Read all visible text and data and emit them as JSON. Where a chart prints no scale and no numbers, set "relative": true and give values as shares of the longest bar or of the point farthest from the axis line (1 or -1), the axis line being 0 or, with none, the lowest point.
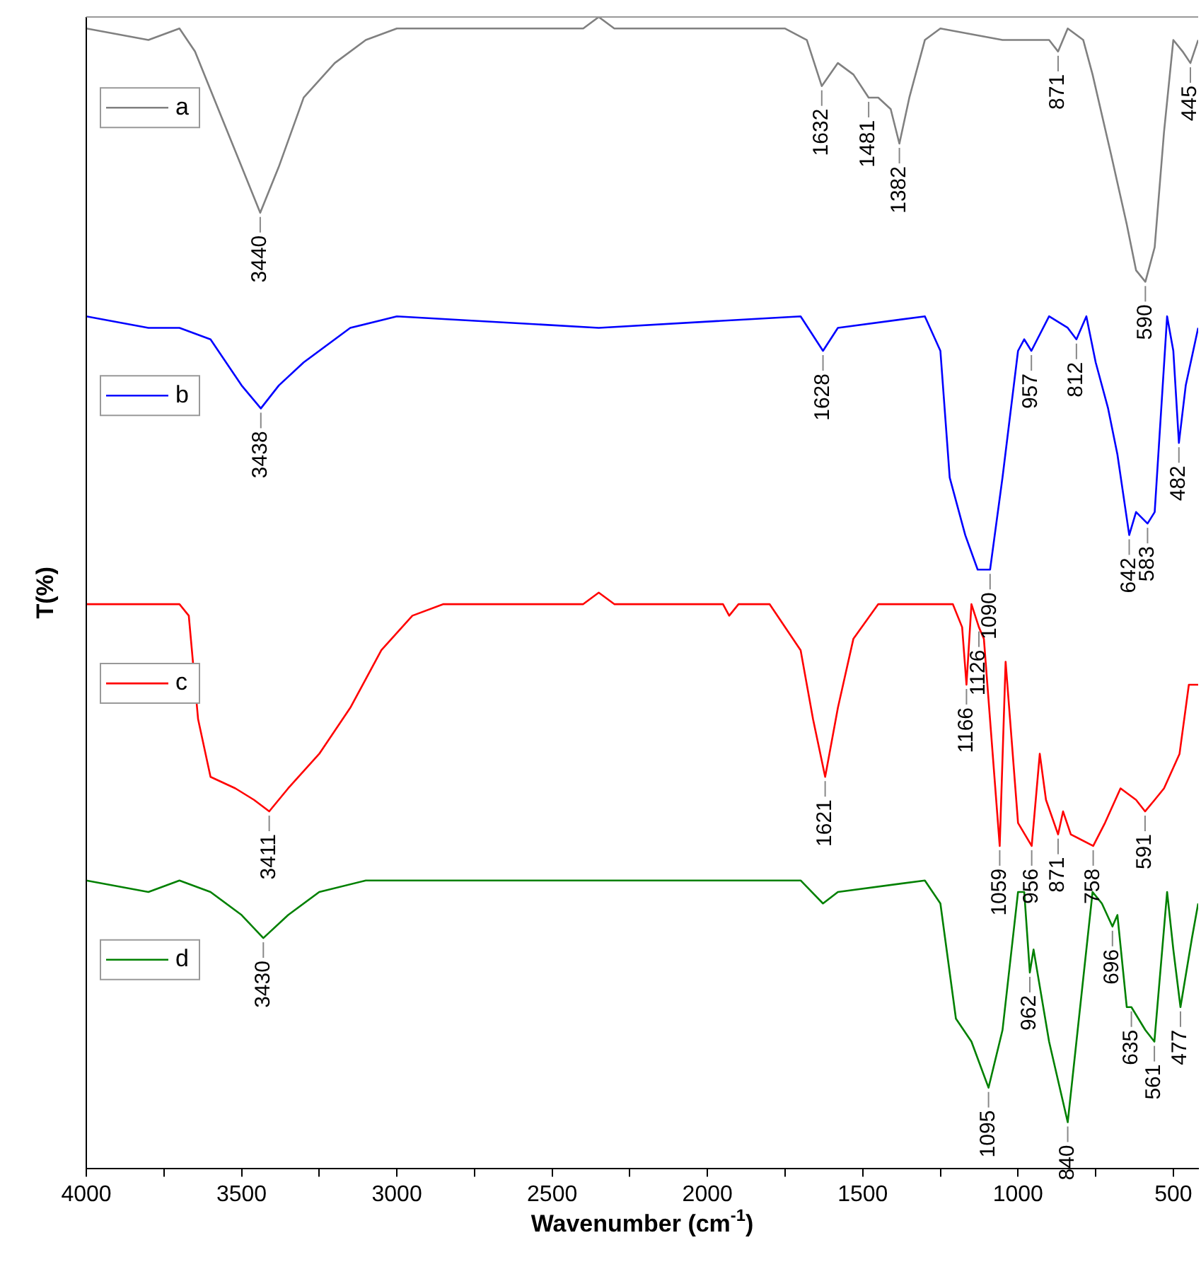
{
  "chart_data": {
    "type": "line",
    "xlabel": "Wavenumber (cm$^{-1}$)",
    "ylabel": "T(%)",
    "relative": true,
    "legend": "left",
    "tick_labels": "x",
    "grid": false,
    "marker": "none",
    "line_style": "solid",
    "xlim": [
      4000,
      420
    ],
    "xticks": [
      4000,
      {
        "value": 3750,
        "label": null
      },
      3500,
      {
        "value": 3250,
        "label": null
      },
      3000,
      {
        "value": 2750,
        "label": null
      },
      2500,
      {
        "value": 2250,
        "label": null
      },
      2000,
      {
        "value": 1750,
        "label": null
      },
      1500,
      {
        "value": 1250,
        "label": null
      },
      1000,
      {
        "value": 750,
        "label": null
      },
      500
    ],
    "series": [
      {
        "name": "a",
        "color": "#808080",
        "x": [
          4000,
          3800,
          3700,
          3650,
          3560,
          3500,
          3440,
          3380,
          3300,
          3200,
          3100,
          3000,
          2400,
          2350,
          2300,
          1750,
          1680,
          1632,
          1580,
          1530,
          1481,
          1450,
          1410,
          1382,
          1350,
          1300,
          1250,
          1050,
          900,
          871,
          840,
          790,
          760,
          700,
          650,
          620,
          590,
          560,
          530,
          500,
          470,
          445,
          420
        ],
        "values": [
          0.99,
          0.98,
          0.99,
          0.97,
          0.91,
          0.87,
          0.83,
          0.87,
          0.93,
          0.96,
          0.98,
          0.99,
          0.99,
          1.0,
          0.99,
          0.99,
          0.98,
          0.94,
          0.96,
          0.95,
          0.93,
          0.93,
          0.92,
          0.89,
          0.93,
          0.98,
          0.99,
          0.98,
          0.98,
          0.97,
          0.99,
          0.98,
          0.95,
          0.88,
          0.82,
          0.78,
          0.77,
          0.8,
          0.9,
          0.98,
          0.97,
          0.96,
          0.98
        ]
      },
      {
        "name": "b",
        "color": "#0000ff",
        "x": [
          4000,
          3800,
          3700,
          3600,
          3500,
          3438,
          3380,
          3300,
          3150,
          3000,
          2350,
          1700,
          1628,
          1580,
          1300,
          1250,
          1220,
          1170,
          1130,
          1090,
          1050,
          1000,
          980,
          957,
          900,
          840,
          812,
          780,
          750,
          710,
          680,
          642,
          620,
          583,
          560,
          520,
          500,
          482,
          460,
          420
        ],
        "values": [
          0.74,
          0.73,
          0.73,
          0.72,
          0.68,
          0.66,
          0.68,
          0.7,
          0.73,
          0.74,
          0.73,
          0.74,
          0.71,
          0.73,
          0.74,
          0.71,
          0.6,
          0.55,
          0.52,
          0.52,
          0.6,
          0.71,
          0.72,
          0.71,
          0.74,
          0.73,
          0.72,
          0.74,
          0.7,
          0.66,
          0.62,
          0.55,
          0.57,
          0.56,
          0.57,
          0.74,
          0.71,
          0.63,
          0.68,
          0.73
        ]
      },
      {
        "name": "c",
        "color": "#ff0000",
        "x": [
          4000,
          3700,
          3670,
          3640,
          3600,
          3520,
          3460,
          3411,
          3350,
          3250,
          3150,
          3050,
          2950,
          2850,
          2400,
          2350,
          2300,
          1950,
          1930,
          1900,
          1800,
          1700,
          1660,
          1621,
          1580,
          1530,
          1450,
          1210,
          1180,
          1166,
          1150,
          1126,
          1110,
          1059,
          1040,
          1020,
          1000,
          956,
          930,
          910,
          871,
          855,
          830,
          758,
          720,
          670,
          620,
          591,
          560,
          530,
          480,
          450,
          420
        ],
        "values": [
          0.49,
          0.49,
          0.48,
          0.39,
          0.34,
          0.33,
          0.32,
          0.31,
          0.33,
          0.36,
          0.4,
          0.45,
          0.48,
          0.49,
          0.49,
          0.5,
          0.49,
          0.49,
          0.48,
          0.49,
          0.49,
          0.45,
          0.39,
          0.34,
          0.4,
          0.46,
          0.49,
          0.49,
          0.47,
          0.42,
          0.49,
          0.47,
          0.46,
          0.28,
          0.44,
          0.37,
          0.3,
          0.28,
          0.36,
          0.32,
          0.29,
          0.31,
          0.29,
          0.28,
          0.3,
          0.33,
          0.32,
          0.31,
          0.32,
          0.33,
          0.36,
          0.42,
          0.42
        ]
      },
      {
        "name": "d",
        "color": "#008000",
        "x": [
          4000,
          3800,
          3700,
          3600,
          3500,
          3430,
          3350,
          3250,
          3100,
          2350,
          1700,
          1628,
          1580,
          1300,
          1250,
          1200,
          1150,
          1095,
          1050,
          1000,
          980,
          962,
          950,
          900,
          840,
          800,
          760,
          730,
          696,
          680,
          650,
          635,
          590,
          561,
          520,
          500,
          477,
          440,
          420
        ],
        "values": [
          0.25,
          0.24,
          0.25,
          0.24,
          0.22,
          0.2,
          0.22,
          0.24,
          0.25,
          0.25,
          0.25,
          0.23,
          0.24,
          0.25,
          0.23,
          0.13,
          0.11,
          0.07,
          0.12,
          0.24,
          0.24,
          0.17,
          0.19,
          0.11,
          0.04,
          0.14,
          0.24,
          0.23,
          0.21,
          0.22,
          0.14,
          0.14,
          0.12,
          0.11,
          0.24,
          0.19,
          0.14,
          0.2,
          0.23
        ]
      }
    ],
    "annotations": [
      {
        "text": "3440",
        "x": 3440,
        "y": 0.83
      },
      {
        "text": "1632",
        "x": 1632,
        "y": 0.94
      },
      {
        "text": "1481",
        "x": 1481,
        "y": 0.93
      },
      {
        "text": "1382",
        "x": 1382,
        "y": 0.89
      },
      {
        "text": "871",
        "x": 871,
        "y": 0.97
      },
      {
        "text": "590",
        "x": 590,
        "y": 0.77
      },
      {
        "text": "445",
        "x": 445,
        "y": 0.96
      },
      {
        "text": "3438",
        "x": 3438,
        "y": 0.66
      },
      {
        "text": "1628",
        "x": 1628,
        "y": 0.71
      },
      {
        "text": "1090",
        "x": 1090,
        "y": 0.52
      },
      {
        "text": "957",
        "x": 957,
        "y": 0.71
      },
      {
        "text": "812",
        "x": 812,
        "y": 0.72
      },
      {
        "text": "642",
        "x": 642,
        "y": 0.55
      },
      {
        "text": "583",
        "x": 583,
        "y": 0.56
      },
      {
        "text": "482",
        "x": 482,
        "y": 0.63
      },
      {
        "text": "3411",
        "x": 3411,
        "y": 0.31
      },
      {
        "text": "1621",
        "x": 1621,
        "y": 0.34
      },
      {
        "text": "1166",
        "x": 1166,
        "y": 0.42
      },
      {
        "text": "1126",
        "x": 1126,
        "y": 0.47
      },
      {
        "text": "1059",
        "x": 1059,
        "y": 0.28
      },
      {
        "text": "956",
        "x": 956,
        "y": 0.28
      },
      {
        "text": "871",
        "x": 871,
        "y": 0.29
      },
      {
        "text": "758",
        "x": 758,
        "y": 0.28
      },
      {
        "text": "591",
        "x": 591,
        "y": 0.31
      },
      {
        "text": "3430",
        "x": 3430,
        "y": 0.2
      },
      {
        "text": "1095",
        "x": 1095,
        "y": 0.07
      },
      {
        "text": "962",
        "x": 962,
        "y": 0.17
      },
      {
        "text": "840",
        "x": 840,
        "y": 0.04
      },
      {
        "text": "696",
        "x": 696,
        "y": 0.21
      },
      {
        "text": "635",
        "x": 635,
        "y": 0.14
      },
      {
        "text": "561",
        "x": 561,
        "y": 0.11
      },
      {
        "text": "477",
        "x": 477,
        "y": 0.14
      }
    ]
  }
}
